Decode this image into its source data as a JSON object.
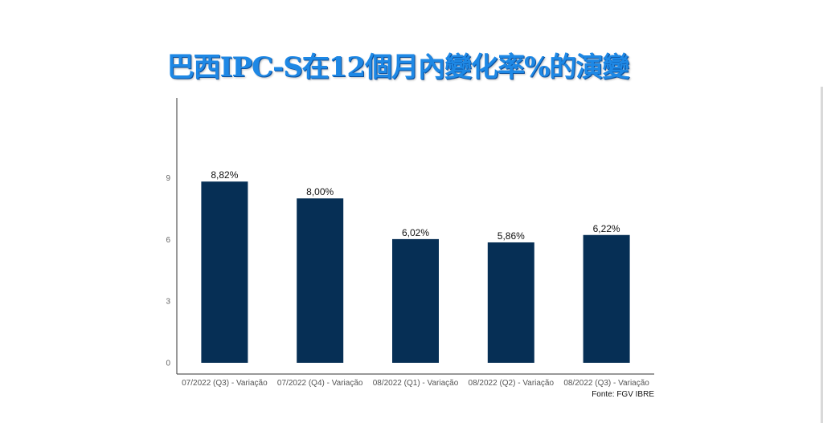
{
  "title": "巴西IPC-S在12個月內變化率%的演變",
  "source": "Fonte: FGV IBRE",
  "colors": {
    "bar": "#062f55",
    "title": "#1e88e5"
  },
  "chart_data": {
    "type": "bar",
    "categories": [
      "07/2022 (Q3) - Variação",
      "07/2022 (Q4) - Variação",
      "08/2022 (Q1) - Variação",
      "08/2022 (Q2) - Variação",
      "08/2022 (Q3) - Variação"
    ],
    "values": [
      8.82,
      8.0,
      6.02,
      5.86,
      6.22
    ],
    "value_labels": [
      "8,82%",
      "8,00%",
      "6,02%",
      "5,86%",
      "6,22%"
    ],
    "yticks": [
      0,
      3,
      6,
      9
    ],
    "ylim": [
      0,
      12.9
    ],
    "grid": false,
    "legend": "none"
  }
}
